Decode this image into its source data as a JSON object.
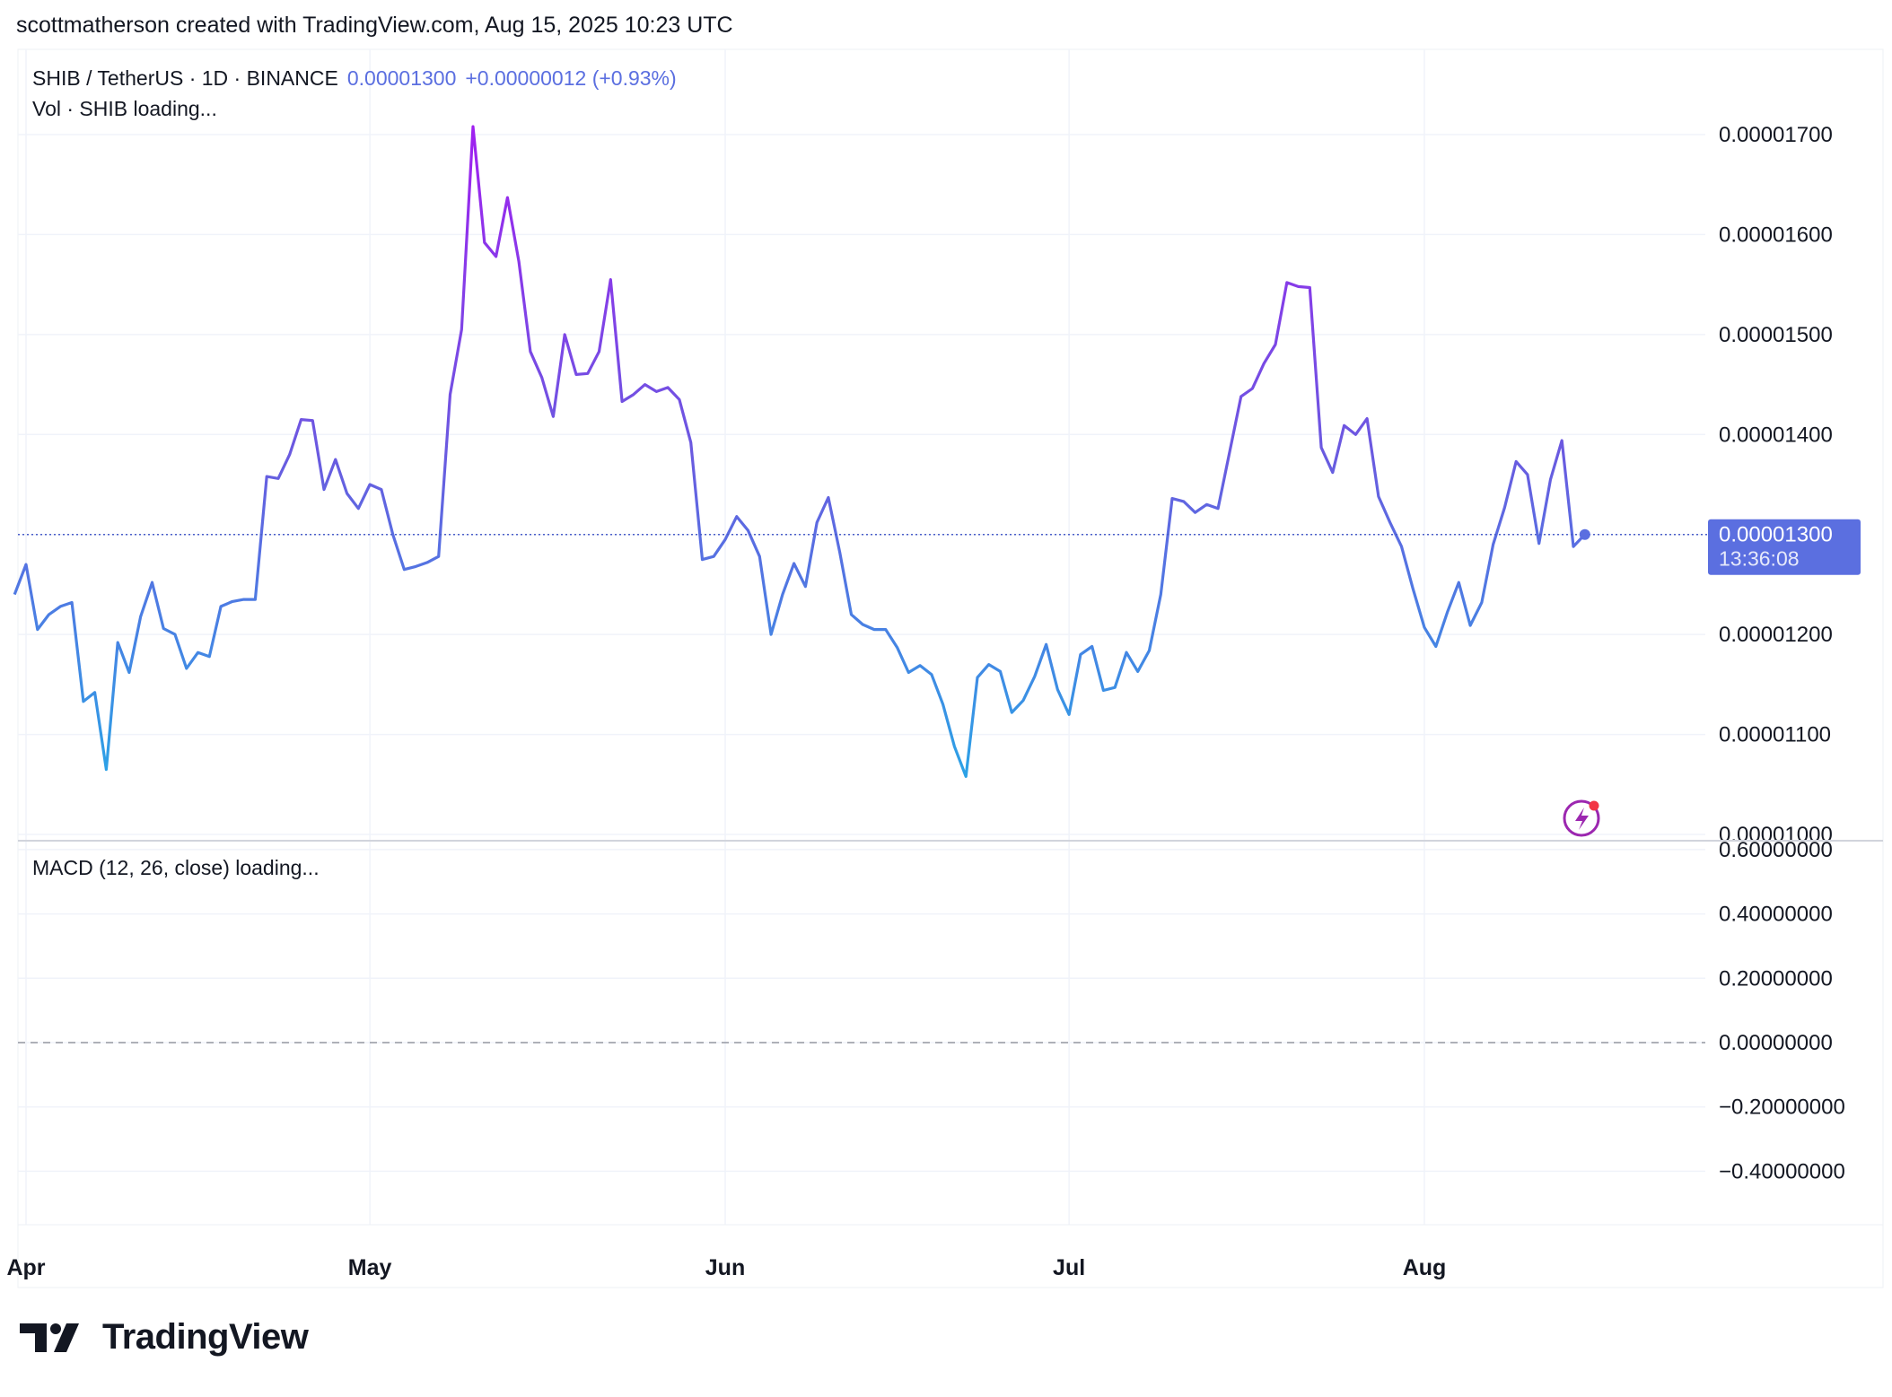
{
  "header": {
    "credit": "scottmatherson created with TradingView.com, Aug 15, 2025 10:23 UTC"
  },
  "legend": {
    "symbol": "SHIB / TetherUS · 1D · BINANCE",
    "price": "0.00001300",
    "change": "+0.00000012 (+0.93%)",
    "volume": "Vol · SHIB loading..."
  },
  "macd": {
    "label": "MACD (12, 26, close) loading..."
  },
  "price_tag": {
    "value": "0.00001300",
    "countdown": "13:36:08"
  },
  "footer": {
    "brand": "TradingView"
  },
  "colors": {
    "line_low": "#2ba3e6",
    "line_high": "#a020f0",
    "accent": "#5b6fe0",
    "grid": "#f0f3fa"
  },
  "icons": [
    "lightning-icon",
    "tradingview-logo-icon"
  ],
  "chart_data": [
    {
      "type": "line",
      "title": "SHIB / TetherUS · 1D · BINANCE",
      "x_axis_labels": [
        "Apr",
        "May",
        "Jun",
        "Jul",
        "Aug"
      ],
      "y_tick_labels": [
        "0.00001700",
        "0.00001600",
        "0.00001500",
        "0.00001400",
        "0.00001300",
        "0.00001200",
        "0.00001100",
        "0.00001000"
      ],
      "ylim": [
        1e-05,
        1.72e-05
      ],
      "xlim": [
        "2025-04-01",
        "2025-08-15"
      ],
      "grid": true,
      "series": [
        {
          "x": [
            "2025-03-31",
            "2025-04-01",
            "2025-04-02",
            "2025-04-03",
            "2025-04-04",
            "2025-04-05",
            "2025-04-06",
            "2025-04-07",
            "2025-04-08",
            "2025-04-09",
            "2025-04-10",
            "2025-04-11",
            "2025-04-12",
            "2025-04-13",
            "2025-04-14",
            "2025-04-15",
            "2025-04-16",
            "2025-04-17",
            "2025-04-18",
            "2025-04-19",
            "2025-04-20",
            "2025-04-21",
            "2025-04-22",
            "2025-04-23",
            "2025-04-24",
            "2025-04-25",
            "2025-04-26",
            "2025-04-27",
            "2025-04-28",
            "2025-04-29",
            "2025-04-30",
            "2025-05-01",
            "2025-05-02",
            "2025-05-03",
            "2025-05-04",
            "2025-05-05",
            "2025-05-06",
            "2025-05-07",
            "2025-05-08",
            "2025-05-09",
            "2025-05-10",
            "2025-05-11",
            "2025-05-12",
            "2025-05-13",
            "2025-05-14",
            "2025-05-15",
            "2025-05-16",
            "2025-05-17",
            "2025-05-18",
            "2025-05-19",
            "2025-05-20",
            "2025-05-21",
            "2025-05-22",
            "2025-05-23",
            "2025-05-24",
            "2025-05-25",
            "2025-05-26",
            "2025-05-27",
            "2025-05-28",
            "2025-05-29",
            "2025-05-30",
            "2025-05-31",
            "2025-06-01",
            "2025-06-02",
            "2025-06-03",
            "2025-06-04",
            "2025-06-05",
            "2025-06-06",
            "2025-06-07",
            "2025-06-08",
            "2025-06-09",
            "2025-06-10",
            "2025-06-11",
            "2025-06-12",
            "2025-06-13",
            "2025-06-14",
            "2025-06-15",
            "2025-06-16",
            "2025-06-17",
            "2025-06-18",
            "2025-06-19",
            "2025-06-20",
            "2025-06-21",
            "2025-06-22",
            "2025-06-23",
            "2025-06-24",
            "2025-06-25",
            "2025-06-26",
            "2025-06-27",
            "2025-06-28",
            "2025-06-29",
            "2025-06-30",
            "2025-07-01",
            "2025-07-02",
            "2025-07-03",
            "2025-07-04",
            "2025-07-05",
            "2025-07-06",
            "2025-07-07",
            "2025-07-08",
            "2025-07-09",
            "2025-07-10",
            "2025-07-11",
            "2025-07-12",
            "2025-07-13",
            "2025-07-14",
            "2025-07-15",
            "2025-07-16",
            "2025-07-17",
            "2025-07-18",
            "2025-07-19",
            "2025-07-20",
            "2025-07-21",
            "2025-07-22",
            "2025-07-23",
            "2025-07-24",
            "2025-07-25",
            "2025-07-26",
            "2025-07-27",
            "2025-07-28",
            "2025-07-29",
            "2025-07-30",
            "2025-07-31",
            "2025-08-01",
            "2025-08-02",
            "2025-08-03",
            "2025-08-04",
            "2025-08-05",
            "2025-08-06",
            "2025-08-07",
            "2025-08-08",
            "2025-08-09",
            "2025-08-10",
            "2025-08-11",
            "2025-08-12",
            "2025-08-13",
            "2025-08-14",
            "2025-08-15"
          ],
          "y": [
            1.24e-05,
            1.27e-05,
            1.205e-05,
            1.22e-05,
            1.228e-05,
            1.232e-05,
            1.133e-05,
            1.142e-05,
            1.065e-05,
            1.192e-05,
            1.162e-05,
            1.218e-05,
            1.252e-05,
            1.206e-05,
            1.2e-05,
            1.166e-05,
            1.182e-05,
            1.178e-05,
            1.228e-05,
            1.233e-05,
            1.235e-05,
            1.235e-05,
            1.358e-05,
            1.356e-05,
            1.38e-05,
            1.415e-05,
            1.414e-05,
            1.345e-05,
            1.375e-05,
            1.341e-05,
            1.326e-05,
            1.35e-05,
            1.345e-05,
            1.3e-05,
            1.265e-05,
            1.268e-05,
            1.272e-05,
            1.278e-05,
            1.44e-05,
            1.505e-05,
            1.708e-05,
            1.592e-05,
            1.578e-05,
            1.637e-05,
            1.573e-05,
            1.483e-05,
            1.457e-05,
            1.418e-05,
            1.5e-05,
            1.46e-05,
            1.461e-05,
            1.483e-05,
            1.555e-05,
            1.433e-05,
            1.44e-05,
            1.45e-05,
            1.443e-05,
            1.447e-05,
            1.435e-05,
            1.392e-05,
            1.275e-05,
            1.278e-05,
            1.295e-05,
            1.318e-05,
            1.304e-05,
            1.278e-05,
            1.2e-05,
            1.24e-05,
            1.271e-05,
            1.248e-05,
            1.312e-05,
            1.337e-05,
            1.282e-05,
            1.22e-05,
            1.21e-05,
            1.205e-05,
            1.205e-05,
            1.187e-05,
            1.162e-05,
            1.169e-05,
            1.16e-05,
            1.13e-05,
            1.088e-05,
            1.058e-05,
            1.157e-05,
            1.17e-05,
            1.163e-05,
            1.122e-05,
            1.134e-05,
            1.158e-05,
            1.19e-05,
            1.145e-05,
            1.12e-05,
            1.18e-05,
            1.188e-05,
            1.144e-05,
            1.147e-05,
            1.182e-05,
            1.163e-05,
            1.184e-05,
            1.24e-05,
            1.336e-05,
            1.333e-05,
            1.322e-05,
            1.33e-05,
            1.326e-05,
            1.382e-05,
            1.438e-05,
            1.446e-05,
            1.471e-05,
            1.49e-05,
            1.552e-05,
            1.548e-05,
            1.547e-05,
            1.387e-05,
            1.362e-05,
            1.409e-05,
            1.4e-05,
            1.416e-05,
            1.338e-05,
            1.312e-05,
            1.288e-05,
            1.246e-05,
            1.207e-05,
            1.188e-05,
            1.222e-05,
            1.252e-05,
            1.209e-05,
            1.232e-05,
            1.29e-05,
            1.327e-05,
            1.373e-05,
            1.36e-05,
            1.291e-05,
            1.355e-05,
            1.394e-05,
            1.288e-05,
            1.3e-05
          ]
        }
      ]
    },
    {
      "type": "line",
      "title": "MACD (12, 26, close) loading...",
      "y_tick_labels": [
        "0.60000000",
        "0.40000000",
        "0.20000000",
        "0.00000000",
        "−0.20000000",
        "−0.40000000"
      ],
      "ylim": [
        -0.4,
        0.6
      ],
      "grid": true,
      "series": []
    }
  ]
}
